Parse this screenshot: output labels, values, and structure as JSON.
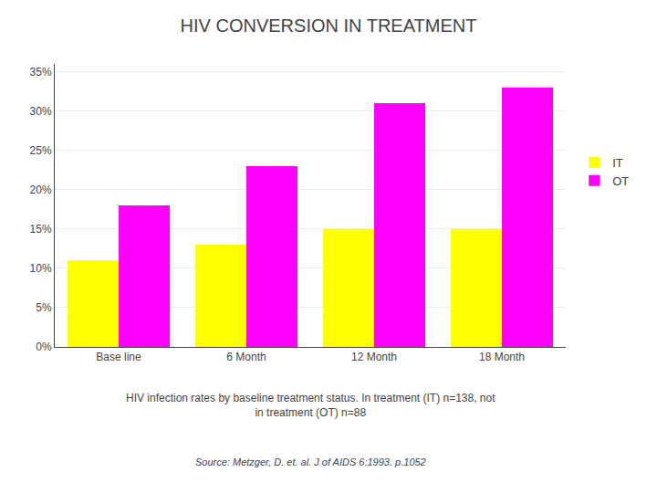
{
  "chart_data": {
    "type": "bar",
    "title": "HIV CONVERSION IN TREATMENT",
    "subtitle": "HIV infection rates by baseline treatment status. In treatment (IT) n=138, not\nin treatment (OT) n=88",
    "annotations": [
      "Source: Metzger, D. et. al. J of AIDS 6:1993. p.1052"
    ],
    "categories": [
      "Base line",
      "6 Month",
      "12 Month",
      "18 Month"
    ],
    "series": [
      {
        "name": "IT",
        "color": "#FFFF00",
        "values": [
          11,
          13,
          15,
          15
        ]
      },
      {
        "name": "OT",
        "color": "#FF00FF",
        "values": [
          18,
          23,
          31,
          33
        ]
      }
    ],
    "ylim": [
      0,
      36
    ],
    "yticks": [
      {
        "value": 0,
        "label": "0%"
      },
      {
        "value": 5,
        "label": "5%"
      },
      {
        "value": 10,
        "label": "10%"
      },
      {
        "value": 15,
        "label": "15%"
      },
      {
        "value": 20,
        "label": "20%"
      },
      {
        "value": 25,
        "label": "25%"
      },
      {
        "value": 30,
        "label": "30%"
      },
      {
        "value": 35,
        "label": "35%"
      }
    ],
    "grid": true,
    "legend": "right"
  }
}
